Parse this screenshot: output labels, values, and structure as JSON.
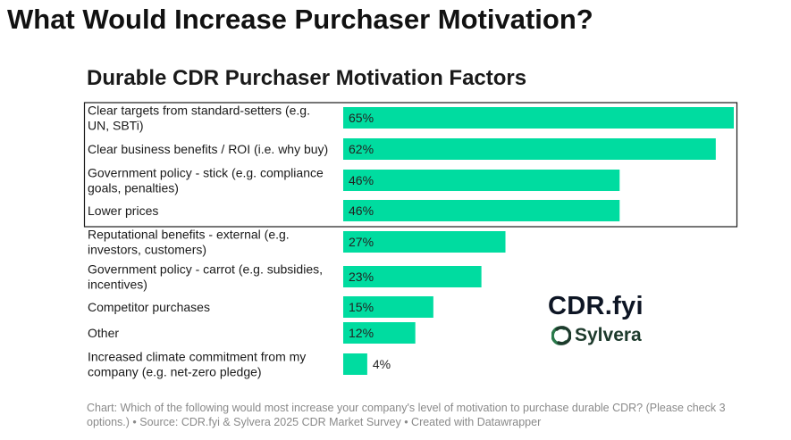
{
  "page": {
    "title": "What Would Increase Purchaser Motivation?",
    "caption": "Chart: Which of the following would most increase your company's level of motivation to purchase durable CDR? (Please check 3 options.) • Source: CDR.fyi & Sylvera 2025 CDR Market Survey • Created with Datawrapper"
  },
  "logos": {
    "cdr_fyi": "CDR.fyi",
    "sylvera": "Sylvera",
    "sylvera_color": "#2a7a4b"
  },
  "chart_data": {
    "type": "bar",
    "orientation": "horizontal",
    "title": "Durable CDR Purchaser Motivation Factors",
    "xlabel": "",
    "ylabel": "",
    "xlim": [
      0,
      65
    ],
    "grid": false,
    "bar_color": "#00dca0",
    "highlight_box_color": "#1a1a1a",
    "categories": [
      [
        "Clear targets from standard-setters (e.g.",
        "UN, SBTi)"
      ],
      [
        "Clear business benefits / ROI (i.e. why buy)"
      ],
      [
        "Government policy - stick (e.g. compliance",
        "goals, penalties)"
      ],
      [
        "Lower prices"
      ],
      [
        "Reputational benefits - external (e.g.",
        "investors, customers)"
      ],
      [
        "Government policy - carrot (e.g. subsidies,",
        "incentives)"
      ],
      [
        "Competitor purchases"
      ],
      [
        "Other"
      ],
      [
        "Increased climate commitment from my",
        "company (e.g. net-zero pledge)"
      ]
    ],
    "values": [
      65,
      62,
      46,
      46,
      27,
      23,
      15,
      12,
      4
    ],
    "value_labels": [
      "65%",
      "62%",
      "46%",
      "46%",
      "27%",
      "23%",
      "15%",
      "12%",
      "4%"
    ],
    "highlighted_rows": [
      0,
      1,
      2,
      3
    ]
  }
}
